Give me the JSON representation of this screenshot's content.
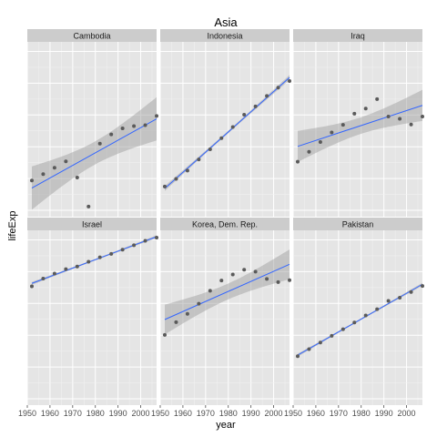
{
  "chart_data": {
    "type": "scatter",
    "title": "Asia",
    "xlabel": "year",
    "ylabel": "lifeExp",
    "xlim": [
      1950,
      2007
    ],
    "x_ticks": [
      1950,
      1960,
      1970,
      1980,
      1990,
      2000
    ],
    "y_ticks_shown": false,
    "shared_y": true,
    "ylim": [
      28,
      83
    ],
    "grid": true,
    "smoother": "linear fit with confidence band",
    "colors": {
      "panel": "#e5e5e5",
      "grid_major": "#ffffff",
      "grid_minor": "#f2f2f2",
      "strip": "#cccccc",
      "point": "#5a5a5a",
      "fit_line": "#3366ff",
      "ribbon": "#999999"
    },
    "years": [
      1952,
      1957,
      1962,
      1967,
      1972,
      1977,
      1982,
      1987,
      1992,
      1997,
      2002,
      2007
    ],
    "facets": [
      {
        "name": "Cambodia",
        "values": [
          39.4,
          41.4,
          43.4,
          45.4,
          40.3,
          31.2,
          51.0,
          53.9,
          55.8,
          56.5,
          56.8,
          59.7
        ]
      },
      {
        "name": "Indonesia",
        "values": [
          37.5,
          39.9,
          42.5,
          46.0,
          49.2,
          52.7,
          56.2,
          60.1,
          62.7,
          66.0,
          68.6,
          70.7
        ]
      },
      {
        "name": "Iraq",
        "values": [
          45.3,
          48.4,
          51.5,
          54.5,
          56.9,
          60.4,
          62.0,
          65.0,
          59.5,
          58.8,
          57.0,
          59.5
        ]
      },
      {
        "name": "Israel",
        "values": [
          65.4,
          67.8,
          69.4,
          70.8,
          71.6,
          73.1,
          74.5,
          75.6,
          76.9,
          78.3,
          79.7,
          80.7
        ]
      },
      {
        "name": "Korea, Dem. Rep.",
        "values": [
          50.1,
          54.1,
          56.7,
          59.9,
          64.0,
          67.2,
          69.1,
          70.6,
          70.0,
          67.7,
          66.7,
          67.3
        ]
      },
      {
        "name": "Pakistan",
        "values": [
          43.4,
          45.6,
          47.7,
          49.8,
          51.9,
          54.0,
          56.2,
          58.2,
          60.8,
          61.8,
          63.6,
          65.5
        ]
      }
    ]
  }
}
